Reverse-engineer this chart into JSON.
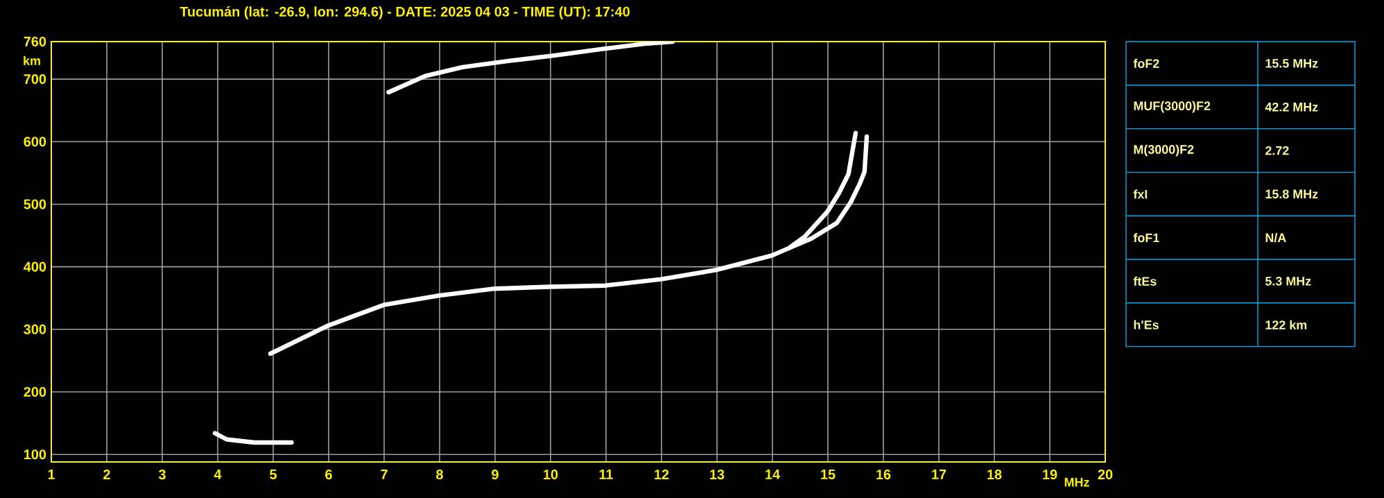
{
  "chart_data": [
    {
      "type": "line",
      "title": "Tucumán (lat: -26.9, lon: 294.6) - DATE: 2025 04 03 - TIME (UT): 17:40",
      "xlabel": "MHz",
      "ylabel": "km",
      "xlim": [
        1,
        20
      ],
      "ylim": [
        88,
        760
      ],
      "xticks": [
        1,
        2,
        3,
        4,
        5,
        6,
        7,
        8,
        9,
        10,
        11,
        12,
        13,
        14,
        15,
        16,
        17,
        18,
        19,
        20
      ],
      "yticks": [
        100,
        200,
        300,
        400,
        500,
        600,
        700,
        760
      ],
      "grid": true,
      "marker": "none",
      "line_style": "solid",
      "series": [
        {
          "color": "#ffffff",
          "x": [
            3.95,
            4.16,
            4.66,
            5.33
          ],
          "values": [
            134,
            124,
            119,
            119
          ]
        },
        {
          "color": "#ffffff",
          "x": [
            4.95,
            5.99,
            6.99,
            7.99,
            8.99,
            9.99,
            10.99,
            11.99,
            12.99,
            13.99,
            14.3,
            14.58,
            14.99,
            15.2,
            15.37,
            15.5
          ],
          "values": [
            261,
            306,
            339,
            354,
            365,
            368,
            370,
            380,
            395,
            418,
            430,
            448,
            488,
            518,
            548,
            614
          ]
        },
        {
          "color": "#ffffff",
          "x": [
            14.3,
            14.7,
            15.16,
            15.41,
            15.58,
            15.66,
            15.7
          ],
          "values": [
            430,
            445,
            470,
            503,
            534,
            552,
            608
          ]
        },
        {
          "color": "#ffffff",
          "x": [
            7.08,
            7.74,
            8.41,
            9.24,
            10.08,
            10.91,
            11.74,
            12.2
          ],
          "values": [
            679,
            705,
            719,
            729,
            738,
            748,
            757,
            760
          ]
        }
      ]
    },
    {
      "type": "other",
      "annotations": [
        "foF2",
        "15.5 MHz",
        "MUF(3000)F2",
        "42.2 MHz",
        "M(3000)F2",
        "2.72",
        "fxI",
        "15.8 MHz",
        "foF1",
        "N/A",
        "ftEs",
        "5.3 MHz",
        "h'Es",
        "122 km"
      ]
    }
  ]
}
